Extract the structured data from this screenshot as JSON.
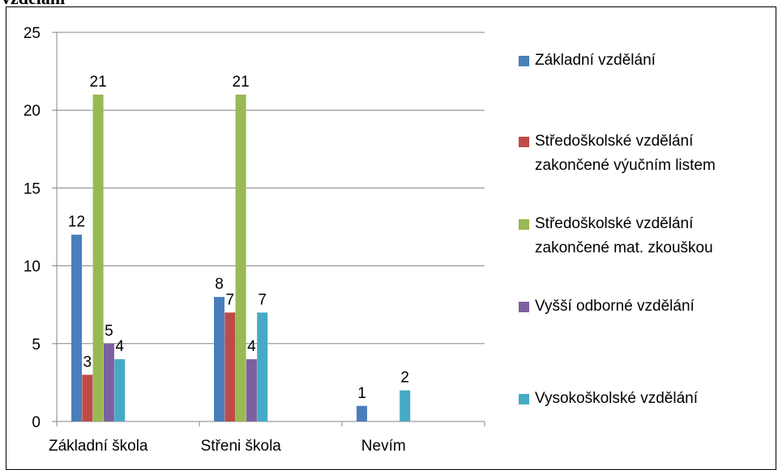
{
  "chart_data": {
    "type": "bar",
    "title": "vzdělání",
    "categories": [
      "Základní škola",
      "Střeni škola",
      "Nevím"
    ],
    "series": [
      {
        "name": "Základní vzdělání",
        "color": "#4a7ebb",
        "values": [
          12,
          8,
          1
        ]
      },
      {
        "name": "Středoškolské vzdělání zakončené výučním listem",
        "color": "#be4b48",
        "values": [
          3,
          7,
          null
        ]
      },
      {
        "name": "Středoškolské vzdělání zakončené mat. zkouškou",
        "color": "#98b954",
        "values": [
          21,
          21,
          null
        ]
      },
      {
        "name": "Vyšší odborné vzdělání",
        "color": "#7d60a0",
        "values": [
          5,
          4,
          null
        ]
      },
      {
        "name": "Vysokoškolské vzdělání",
        "color": "#46aac5",
        "values": [
          4,
          7,
          2
        ]
      }
    ],
    "ylim": [
      0,
      25
    ],
    "yticks": [
      0,
      5,
      10,
      15,
      20,
      25
    ],
    "grid": true,
    "legend": "right"
  }
}
